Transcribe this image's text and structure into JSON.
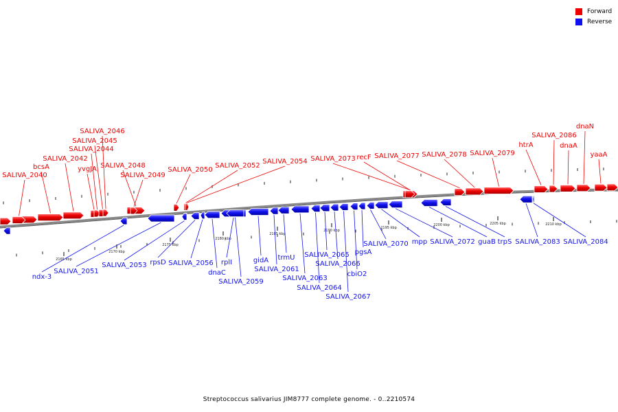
{
  "legend": {
    "forward_label": "Forward",
    "reverse_label": "Reverse",
    "forward_color": "#ee0000",
    "reverse_color": "#1010ee"
  },
  "caption": "Streptococcus salivarius JIM8777 complete genome. - 0..2210574",
  "scale": {
    "ticks": [
      "2165 kbp",
      "2170 kbp",
      "2175 kbp",
      "2180 kbp",
      "2185 kbp",
      "2190 kbp",
      "2195 kbp",
      "2200 kbp",
      "2205 kbp",
      "2210 kbp"
    ]
  },
  "forward_genes": [
    "SALIVA_2040",
    "bcsA",
    "SALIVA_2042",
    "yvgJA",
    "SALIVA_2044",
    "SALIVA_2045",
    "SALIVA_2046",
    "SALIVA_2048",
    "SALIVA_2049",
    "SALIVA_2050",
    "SALIVA_2052",
    "SALIVA_2054",
    "SALIVA_2073",
    "recF",
    "SALIVA_2077",
    "SALIVA_2078",
    "SALIVA_2079",
    "htrA",
    "SALIVA_2086",
    "dnaA",
    "dnaN",
    "yaaA"
  ],
  "reverse_genes": [
    "ndx-3",
    "SALIVA_2051",
    "SALIVA_2053",
    "rpsD",
    "SALIVA_2056",
    "dnaC",
    "rplI",
    "SALIVA_2059",
    "gidA",
    "SALIVA_2061",
    "trmU",
    "SALIVA_2063",
    "SALIVA_2064",
    "SALIVA_2065",
    "SALIVA_2066",
    "SALIVA_2067",
    "cbiO2",
    "pgsA",
    "SALIVA_2070",
    "mpp",
    "SALIVA_2072",
    "guaB",
    "trpS",
    "SALIVA_2083",
    "SALIVA_2084"
  ]
}
